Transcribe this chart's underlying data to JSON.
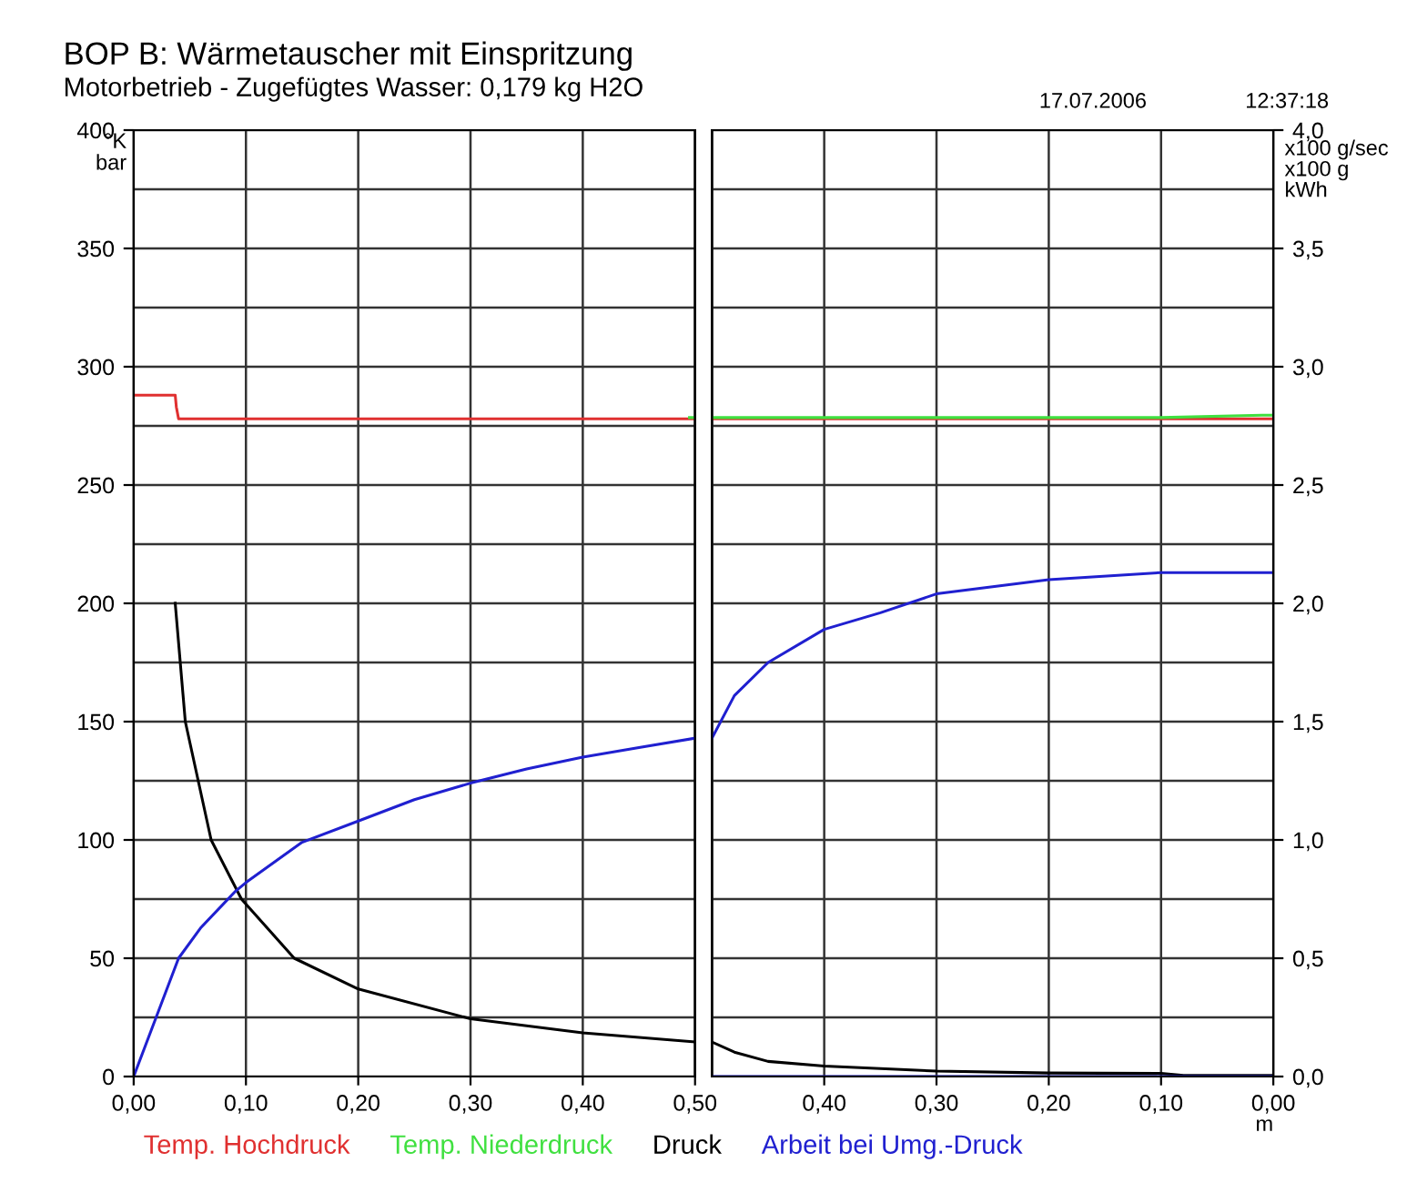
{
  "chart_data": [
    {
      "type": "line",
      "title": "BOP B: Wärmetauscher mit Einspritzung",
      "subtitle": "Motorbetrieb - Zugefügtes Wasser: 0,179 kg H2O",
      "annotations": [
        "17.07.2006",
        "12:37:18"
      ],
      "ylabel": "°K\nbar",
      "xlim": [
        0,
        0.5
      ],
      "xticks": [
        {
          "value": 0,
          "label": "0,00"
        },
        {
          "value": 0.1,
          "label": "0,10"
        },
        {
          "value": 0.2,
          "label": "0,20"
        },
        {
          "value": 0.3,
          "label": "0,30"
        },
        {
          "value": 0.4,
          "label": "0,40"
        },
        {
          "value": 0.5,
          "label": "0,50"
        }
      ],
      "ylim": [
        0,
        400
      ],
      "yticks": [
        0,
        {
          "value": 25,
          "label": null
        },
        50,
        {
          "value": 75,
          "label": null
        },
        100,
        {
          "value": 125,
          "label": null
        },
        150,
        {
          "value": 175,
          "label": null
        },
        200,
        {
          "value": 225,
          "label": null
        },
        250,
        {
          "value": 275,
          "label": null
        },
        300,
        {
          "value": 325,
          "label": null
        },
        350,
        {
          "value": 375,
          "label": null
        },
        400
      ],
      "y2lim": [
        0,
        4.0
      ],
      "grid": true,
      "legend": "bottom",
      "marker": "none",
      "line_style": "solid",
      "series": [
        {
          "name": "Temp. Hochdruck",
          "color": "#e03030",
          "x": [
            0,
            0.037,
            0.038,
            0.04,
            0.5
          ],
          "values": [
            288,
            288,
            283,
            278,
            278
          ]
        },
        {
          "name": "Temp. Niederdruck",
          "color": "#40e040",
          "x": [
            0.495,
            0.5
          ],
          "values": [
            278.5,
            278.5
          ]
        },
        {
          "name": "Druck",
          "color": "#000000",
          "x": [
            0.037,
            0.046,
            0.069,
            0.096,
            0.143,
            0.2,
            0.3,
            0.4,
            0.5
          ],
          "values": [
            200,
            150,
            100,
            75,
            50,
            37,
            24.4,
            18.5,
            14.6
          ]
        },
        {
          "name": "Arbeit bei Umg.-Druck",
          "color": "#2020d0",
          "axis": "y2",
          "x": [
            0,
            0.02,
            0.04,
            0.06,
            0.09,
            0.1,
            0.15,
            0.2,
            0.25,
            0.3,
            0.35,
            0.4,
            0.45,
            0.5
          ],
          "values": [
            0,
            0.25,
            0.5,
            0.63,
            0.78,
            0.82,
            0.99,
            1.08,
            1.17,
            1.24,
            1.3,
            1.35,
            1.39,
            1.43
          ]
        }
      ]
    },
    {
      "type": "line",
      "xlabel": "m",
      "y2label": "x100 g/sec\nx100 g\nkWh",
      "xlim": [
        0.5,
        0
      ],
      "xticks": [
        {
          "value": 0.5,
          "label": null
        },
        {
          "value": 0.4,
          "label": "0,40"
        },
        {
          "value": 0.3,
          "label": "0,30"
        },
        {
          "value": 0.2,
          "label": "0,20"
        },
        {
          "value": 0.1,
          "label": "0,10"
        },
        {
          "value": 0,
          "label": "0,00"
        }
      ],
      "ylim": [
        0,
        400
      ],
      "y2lim": [
        0,
        4.0
      ],
      "y2ticks": [
        {
          "value": 0,
          "label": "0,0"
        },
        {
          "value": 0.25,
          "label": null
        },
        {
          "value": 0.5,
          "label": "0,5"
        },
        {
          "value": 0.75,
          "label": null
        },
        {
          "value": 1.0,
          "label": "1,0"
        },
        {
          "value": 1.25,
          "label": null
        },
        {
          "value": 1.5,
          "label": "1,5"
        },
        {
          "value": 1.75,
          "label": null
        },
        {
          "value": 2.0,
          "label": "2,0"
        },
        {
          "value": 2.25,
          "label": null
        },
        {
          "value": 2.5,
          "label": "2,5"
        },
        {
          "value": 2.75,
          "label": null
        },
        {
          "value": 3.0,
          "label": "3,0"
        },
        {
          "value": 3.25,
          "label": null
        },
        {
          "value": 3.5,
          "label": "3,5"
        },
        {
          "value": 3.75,
          "label": null
        },
        {
          "value": 4.0,
          "label": "4,0"
        }
      ],
      "grid": true,
      "marker": "none",
      "line_style": "solid",
      "series": [
        {
          "color": "#e03030",
          "x": [
            0.5,
            0
          ],
          "values": [
            278,
            278
          ]
        },
        {
          "color": "#40e040",
          "x": [
            0.5,
            0.1,
            0.01,
            0
          ],
          "values": [
            278.5,
            278.5,
            279.5,
            279.5
          ]
        },
        {
          "color": "#000000",
          "x": [
            0.5,
            0.48,
            0.45,
            0.4,
            0.3,
            0.2,
            0.1,
            0.08,
            0
          ],
          "values": [
            14.6,
            10.3,
            6.4,
            4.4,
            2.3,
            1.5,
            1.3,
            0.5,
            0.5
          ]
        },
        {
          "color": "#2020d0",
          "axis": "y2",
          "x": [
            0.5,
            0.48,
            0.45,
            0.4,
            0.35,
            0.3,
            0.2,
            0.1,
            0
          ],
          "values": [
            1.43,
            1.61,
            1.75,
            1.89,
            1.96,
            2.04,
            2.1,
            2.13,
            2.13
          ]
        },
        {
          "color": "#2020d0",
          "axis": "y2",
          "x": [
            0.5,
            0
          ],
          "values": [
            0,
            0
          ]
        }
      ]
    }
  ]
}
